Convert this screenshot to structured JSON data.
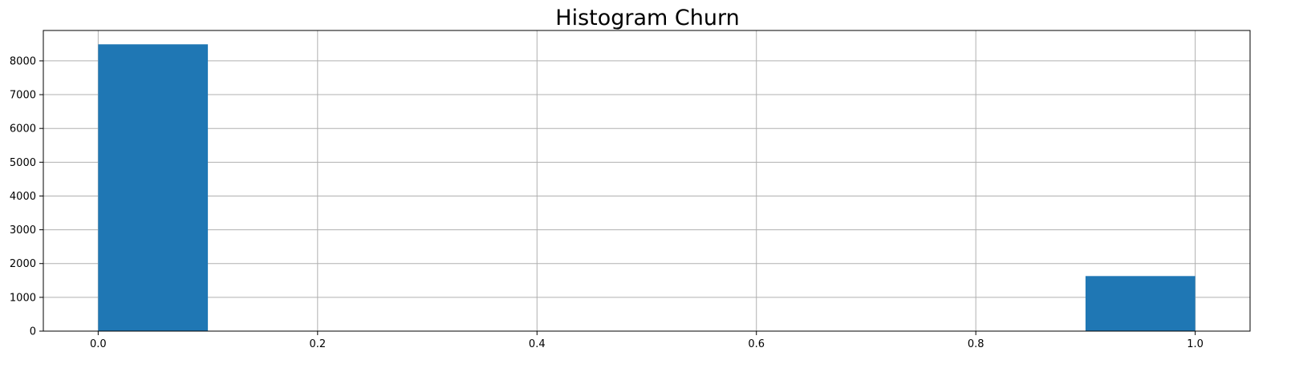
{
  "chart_data": {
    "type": "bar",
    "title": "Histogram Churn",
    "xlabel": "",
    "ylabel": "",
    "bins": [
      {
        "x0": 0.0,
        "x1": 0.1,
        "count": 8490
      },
      {
        "x0": 0.1,
        "x1": 0.2,
        "count": 0
      },
      {
        "x0": 0.2,
        "x1": 0.3,
        "count": 0
      },
      {
        "x0": 0.3,
        "x1": 0.4,
        "count": 0
      },
      {
        "x0": 0.4,
        "x1": 0.5,
        "count": 0
      },
      {
        "x0": 0.5,
        "x1": 0.6,
        "count": 0
      },
      {
        "x0": 0.6,
        "x1": 0.7,
        "count": 0
      },
      {
        "x0": 0.7,
        "x1": 0.8,
        "count": 0
      },
      {
        "x0": 0.8,
        "x1": 0.9,
        "count": 0
      },
      {
        "x0": 0.9,
        "x1": 1.0,
        "count": 1630
      }
    ],
    "xlim": [
      -0.05,
      1.05
    ],
    "ylim": [
      0,
      8900
    ],
    "xticks": [
      0.0,
      0.2,
      0.4,
      0.6,
      0.8,
      1.0
    ],
    "xtick_labels": [
      "0.0",
      "0.2",
      "0.4",
      "0.6",
      "0.8",
      "1.0"
    ],
    "yticks": [
      0,
      1000,
      2000,
      3000,
      4000,
      5000,
      6000,
      7000,
      8000
    ],
    "ytick_labels": [
      "0",
      "1000",
      "2000",
      "3000",
      "4000",
      "5000",
      "6000",
      "7000",
      "8000"
    ],
    "grid": true,
    "bar_color": "#1f77b4",
    "grid_color": "#b0b0b0"
  }
}
